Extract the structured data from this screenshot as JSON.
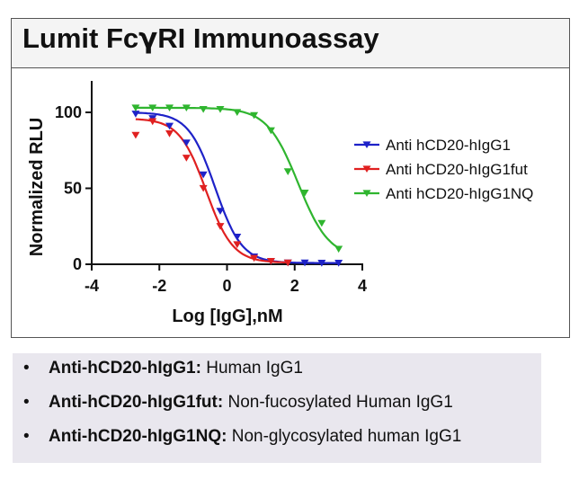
{
  "title": {
    "prefix": "Lumit Fc",
    "greek": "γ",
    "suffix": "RI Immunoassay"
  },
  "chart_data": {
    "type": "line",
    "title": "Lumit FcγRI Immunoassay",
    "xlabel": "Log [IgG],nM",
    "ylabel": "Normalized RLU",
    "xlim": [
      -4,
      4
    ],
    "ylim": [
      0,
      100
    ],
    "x_ticks": [
      "-4",
      "-2",
      "0",
      "2",
      "4"
    ],
    "y_ticks": [
      "0",
      "50",
      "100"
    ],
    "legend_position": "right",
    "series": [
      {
        "name": "Anti hCD20-hIgG1",
        "color": "#1e22c8",
        "marker": "triangle-down",
        "points": [
          [
            -2.7,
            99
          ],
          [
            -2.2,
            96
          ],
          [
            -1.7,
            91
          ],
          [
            -1.2,
            80
          ],
          [
            -0.7,
            59
          ],
          [
            -0.2,
            35
          ],
          [
            0.3,
            18
          ],
          [
            0.8,
            5
          ],
          [
            1.3,
            2
          ],
          [
            1.8,
            1
          ],
          [
            2.3,
            1
          ],
          [
            2.8,
            0.8
          ],
          [
            3.3,
            0.8
          ]
        ],
        "curve": {
          "top": 100,
          "bottom": 0.8,
          "logEC50": -0.35,
          "hill": -1.1
        }
      },
      {
        "name": "Anti hCD20-hIgG1fut",
        "color": "#e02020",
        "marker": "triangle-down",
        "points": [
          [
            -2.7,
            85
          ],
          [
            -2.2,
            94
          ],
          [
            -1.7,
            86
          ],
          [
            -1.2,
            70
          ],
          [
            -0.7,
            50
          ],
          [
            -0.2,
            25
          ],
          [
            0.3,
            13
          ],
          [
            0.8,
            4
          ],
          [
            1.3,
            2
          ],
          [
            1.8,
            1
          ]
        ],
        "curve": {
          "top": 96,
          "bottom": 1,
          "logEC50": -0.62,
          "hill": -1.1
        }
      },
      {
        "name": "Anti hCD20-hIgG1NQ",
        "color": "#2fb52f",
        "marker": "triangle-down",
        "points": [
          [
            -2.7,
            103
          ],
          [
            -2.2,
            103
          ],
          [
            -1.7,
            103
          ],
          [
            -1.2,
            103
          ],
          [
            -0.7,
            102
          ],
          [
            -0.2,
            102
          ],
          [
            0.3,
            100
          ],
          [
            0.8,
            98
          ],
          [
            1.3,
            88
          ],
          [
            1.8,
            61
          ],
          [
            2.3,
            47
          ],
          [
            2.8,
            27
          ],
          [
            3.3,
            10
          ]
        ],
        "curve": {
          "top": 103,
          "bottom": 4,
          "logEC50": 2.1,
          "hill": -0.95
        }
      }
    ]
  },
  "definitions": [
    {
      "bullet": "•",
      "term": "Anti-hCD20-hIgG1:",
      "desc": " Human IgG1"
    },
    {
      "bullet": "•",
      "term": "Anti-hCD20-hIgG1fut:",
      "desc": " Non-fucosylated Human IgG1"
    },
    {
      "bullet": "•",
      "term": "Anti-hCD20-hIgG1NQ:",
      "desc": " Non-glycosylated human IgG1"
    }
  ]
}
